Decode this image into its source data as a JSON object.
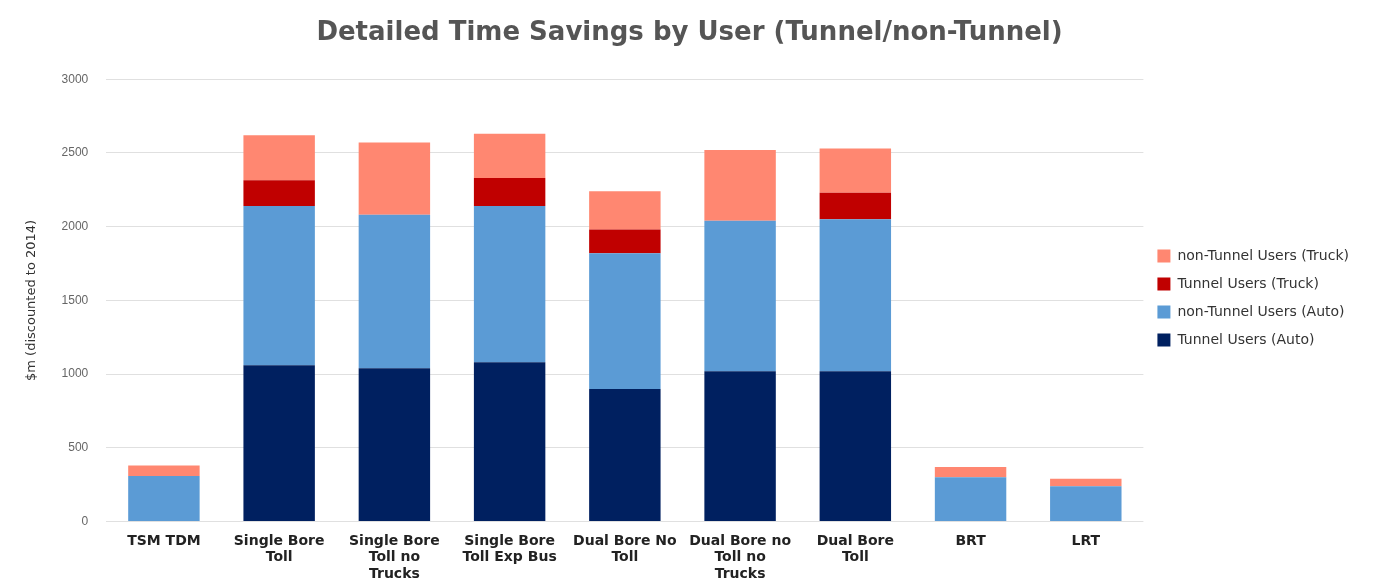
{
  "chart_data": {
    "type": "bar",
    "stacked": true,
    "title": "Detailed Time Savings by User (Tunnel/non-Tunnel)",
    "ylabel": "$m (discounted to 2014)",
    "categories": [
      "TSM TDM",
      "Single Bore Toll",
      "Single Bore Toll no Trucks",
      "Single Bore Toll Exp Bus",
      "Dual Bore No Toll",
      "Dual Bore no Toll no Trucks",
      "Dual Bore Toll",
      "BRT",
      "LRT"
    ],
    "series": [
      {
        "name": "Tunnel Users (Auto)",
        "color": "#002060",
        "values": [
          0,
          1060,
          1040,
          1080,
          900,
          1020,
          1020,
          0,
          0
        ]
      },
      {
        "name": "non-Tunnel Users (Auto)",
        "color": "#5b9bd5",
        "values": [
          310,
          1080,
          1040,
          1060,
          920,
          1020,
          1030,
          300,
          240
        ]
      },
      {
        "name": "Tunnel Users (Truck)",
        "color": "#c00000",
        "values": [
          0,
          175,
          0,
          190,
          160,
          0,
          180,
          0,
          0
        ]
      },
      {
        "name": "non-Tunnel Users (Truck)",
        "color": "#ff8771",
        "values": [
          70,
          305,
          490,
          300,
          260,
          480,
          300,
          70,
          50
        ]
      }
    ],
    "ylim": [
      0,
      3000
    ],
    "yticks": [
      0,
      500,
      1000,
      1500,
      2000,
      2500,
      3000
    ],
    "grid": "y",
    "legend": "right"
  }
}
